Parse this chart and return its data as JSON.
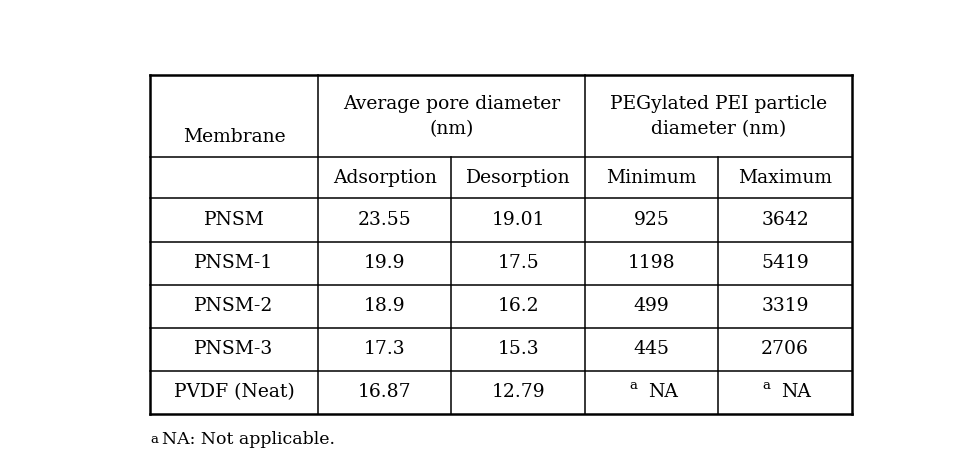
{
  "header_row1_col0": "Membrane",
  "header_row1_col12": "Average pore diameter\n(nm)",
  "header_row1_col34": "PEGylated PEI particle\ndiameter (nm)",
  "header_row2": [
    "Adsorption",
    "Desorption",
    "Minimum",
    "Maximum"
  ],
  "rows": [
    [
      "PNSM",
      "23.55",
      "19.01",
      "925",
      "3642"
    ],
    [
      "PNSM-1",
      "19.9",
      "17.5",
      "1198",
      "5419"
    ],
    [
      "PNSM-2",
      "18.9",
      "16.2",
      "499",
      "3319"
    ],
    [
      "PNSM-3",
      "17.3",
      "15.3",
      "445",
      "2706"
    ],
    [
      "PVDF (Neat)",
      "16.87",
      "12.79",
      "aNA",
      "aNA"
    ]
  ],
  "bg_color": "#ffffff",
  "border_color": "#000000",
  "font_size": 13.5,
  "figsize": [
    9.63,
    4.73
  ]
}
